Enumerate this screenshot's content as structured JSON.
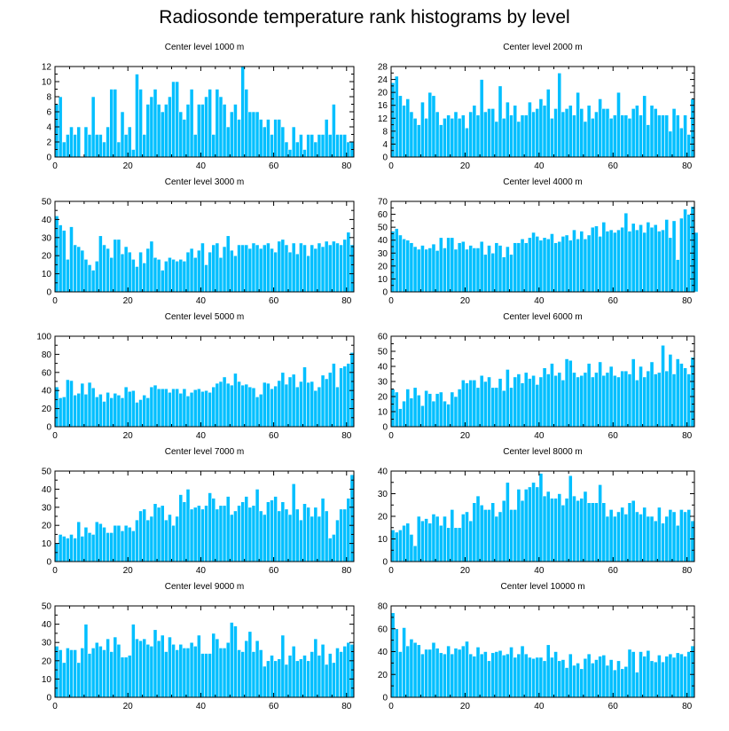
{
  "title": "Radiosonde temperature rank histograms by level",
  "colors": {
    "bar": "#00BFFF",
    "bar_edge": "#ffffff",
    "axis": "#000000",
    "background": "#ffffff"
  },
  "chart_data": [
    {
      "type": "bar",
      "title": "Center level 1000 m",
      "xlim": [
        0,
        82
      ],
      "ylim": [
        0,
        12
      ],
      "xticks": [
        0,
        20,
        40,
        60,
        80
      ],
      "yticks": [
        0,
        2,
        4,
        6,
        8,
        10,
        12
      ],
      "x_start": 0,
      "values": [
        7,
        8,
        2,
        3,
        4,
        3,
        4,
        0,
        4,
        3,
        8,
        3,
        3,
        2,
        4,
        9,
        9,
        2,
        6,
        3,
        4,
        1,
        11,
        9,
        3,
        7,
        8,
        9,
        7,
        6,
        7,
        8,
        10,
        10,
        6,
        5,
        7,
        9,
        3,
        7,
        7,
        8,
        9,
        3,
        9,
        8,
        7,
        4,
        6,
        7,
        5,
        12,
        9,
        6,
        6,
        6,
        5,
        4,
        5,
        3,
        5,
        5,
        4,
        2,
        1,
        4,
        2,
        3,
        1,
        3,
        3,
        2,
        3,
        3,
        5,
        3,
        7,
        3,
        3,
        3,
        2,
        2
      ]
    },
    {
      "type": "bar",
      "title": "Center level 2000 m",
      "xlim": [
        0,
        82
      ],
      "ylim": [
        0,
        28
      ],
      "xticks": [
        0,
        20,
        40,
        60,
        80
      ],
      "yticks": [
        0,
        4,
        8,
        12,
        16,
        20,
        24,
        28
      ],
      "x_start": 0,
      "values": [
        23,
        25,
        19,
        16,
        18,
        14,
        12,
        10,
        17,
        12,
        20,
        19,
        14,
        10,
        12,
        13,
        12,
        14,
        12,
        13,
        9,
        14,
        16,
        13,
        24,
        14,
        15,
        15,
        11,
        22,
        12,
        17,
        13,
        16,
        11,
        13,
        13,
        17,
        14,
        15,
        18,
        16,
        21,
        12,
        15,
        26,
        14,
        15,
        16,
        13,
        20,
        15,
        11,
        16,
        12,
        14,
        18,
        15,
        15,
        12,
        13,
        20,
        13,
        13,
        12,
        15,
        16,
        13,
        19,
        10,
        16,
        15,
        13,
        13,
        13,
        8,
        15,
        13,
        9,
        13,
        7,
        18
      ]
    },
    {
      "type": "bar",
      "title": "Center level 3000 m",
      "xlim": [
        0,
        82
      ],
      "ylim": [
        0,
        50
      ],
      "xticks": [
        0,
        20,
        40,
        60,
        80
      ],
      "yticks": [
        0,
        10,
        20,
        30,
        40,
        50
      ],
      "x_start": 0,
      "values": [
        42,
        37,
        34,
        18,
        36,
        26,
        25,
        23,
        18,
        15,
        12,
        17,
        31,
        26,
        24,
        19,
        29,
        29,
        21,
        25,
        22,
        18,
        14,
        22,
        16,
        24,
        28,
        19,
        18,
        12,
        17,
        19,
        18,
        17,
        18,
        17,
        22,
        24,
        19,
        23,
        27,
        15,
        22,
        26,
        27,
        19,
        25,
        31,
        23,
        20,
        26,
        26,
        26,
        24,
        27,
        26,
        24,
        26,
        27,
        24,
        22,
        28,
        29,
        26,
        22,
        27,
        21,
        27,
        26,
        20,
        26,
        24,
        27,
        25,
        28,
        26,
        28,
        27,
        26,
        29,
        33,
        26
      ]
    },
    {
      "type": "bar",
      "title": "Center level 4000 m",
      "xlim": [
        0,
        82
      ],
      "ylim": [
        0,
        70
      ],
      "xticks": [
        0,
        20,
        40,
        60,
        80
      ],
      "yticks": [
        0,
        10,
        20,
        30,
        40,
        50,
        60,
        70
      ],
      "x_start": 0,
      "values": [
        47,
        49,
        44,
        41,
        40,
        38,
        35,
        33,
        36,
        33,
        34,
        37,
        32,
        42,
        34,
        42,
        42,
        33,
        38,
        39,
        33,
        36,
        34,
        34,
        39,
        29,
        36,
        30,
        38,
        36,
        27,
        35,
        29,
        38,
        38,
        41,
        38,
        42,
        46,
        43,
        40,
        42,
        41,
        45,
        38,
        39,
        43,
        44,
        40,
        48,
        41,
        47,
        41,
        44,
        50,
        51,
        43,
        54,
        47,
        48,
        46,
        48,
        50,
        61,
        47,
        53,
        48,
        52,
        46,
        54,
        50,
        52,
        47,
        48,
        56,
        42,
        55,
        25,
        57,
        64,
        60,
        66,
        46
      ]
    },
    {
      "type": "bar",
      "title": "Center level 5000 m",
      "xlim": [
        0,
        82
      ],
      "ylim": [
        0,
        100
      ],
      "xticks": [
        0,
        20,
        40,
        60,
        80
      ],
      "yticks": [
        0,
        20,
        40,
        60,
        80,
        100
      ],
      "x_start": 0,
      "values": [
        44,
        32,
        33,
        52,
        51,
        35,
        37,
        48,
        36,
        49,
        43,
        33,
        36,
        28,
        38,
        32,
        37,
        35,
        32,
        44,
        39,
        40,
        27,
        30,
        35,
        32,
        44,
        46,
        42,
        42,
        42,
        38,
        42,
        42,
        37,
        42,
        34,
        38,
        41,
        42,
        39,
        40,
        38,
        44,
        48,
        50,
        55,
        48,
        46,
        59,
        50,
        46,
        47,
        44,
        43,
        33,
        36,
        49,
        48,
        42,
        45,
        51,
        60,
        47,
        55,
        58,
        44,
        50,
        66,
        49,
        50,
        40,
        44,
        57,
        53,
        60,
        70,
        44,
        65,
        67,
        70,
        82
      ]
    },
    {
      "type": "bar",
      "title": "Center level 6000 m",
      "xlim": [
        0,
        82
      ],
      "ylim": [
        0,
        60
      ],
      "xticks": [
        0,
        20,
        40,
        60,
        80
      ],
      "yticks": [
        0,
        10,
        20,
        30,
        40,
        50,
        60
      ],
      "x_start": 0,
      "values": [
        25,
        23,
        12,
        17,
        25,
        19,
        26,
        21,
        14,
        24,
        22,
        17,
        22,
        23,
        17,
        15,
        23,
        20,
        25,
        31,
        29,
        31,
        31,
        26,
        34,
        30,
        33,
        26,
        26,
        32,
        24,
        38,
        26,
        33,
        35,
        29,
        36,
        32,
        34,
        28,
        33,
        39,
        35,
        42,
        34,
        36,
        31,
        45,
        44,
        36,
        33,
        34,
        36,
        42,
        33,
        36,
        43,
        34,
        36,
        40,
        34,
        33,
        37,
        37,
        35,
        45,
        31,
        40,
        33,
        37,
        43,
        35,
        36,
        54,
        37,
        48,
        35,
        45,
        42,
        39,
        35,
        46
      ]
    },
    {
      "type": "bar",
      "title": "Center level 7000 m",
      "xlim": [
        0,
        82
      ],
      "ylim": [
        0,
        50
      ],
      "xticks": [
        0,
        20,
        40,
        60,
        80
      ],
      "yticks": [
        0,
        10,
        20,
        30,
        40,
        50
      ],
      "x_start": 0,
      "values": [
        10,
        15,
        14,
        13,
        15,
        13,
        22,
        14,
        19,
        16,
        15,
        22,
        21,
        19,
        16,
        16,
        20,
        20,
        17,
        20,
        19,
        17,
        23,
        28,
        29,
        23,
        25,
        32,
        30,
        31,
        23,
        26,
        20,
        25,
        37,
        33,
        40,
        29,
        30,
        31,
        29,
        31,
        38,
        35,
        29,
        31,
        31,
        36,
        26,
        28,
        31,
        33,
        36,
        30,
        31,
        40,
        28,
        26,
        33,
        34,
        36,
        28,
        33,
        29,
        26,
        43,
        29,
        23,
        32,
        30,
        25,
        30,
        25,
        35,
        28,
        13,
        15,
        23,
        29,
        29,
        35,
        48
      ]
    },
    {
      "type": "bar",
      "title": "Center level 8000 m",
      "xlim": [
        0,
        82
      ],
      "ylim": [
        0,
        40
      ],
      "xticks": [
        0,
        20,
        40,
        60,
        80
      ],
      "yticks": [
        0,
        10,
        20,
        30,
        40
      ],
      "x_start": 0,
      "values": [
        14,
        13,
        14,
        16,
        17,
        12,
        7,
        20,
        18,
        19,
        17,
        21,
        20,
        16,
        20,
        15,
        23,
        15,
        15,
        21,
        22,
        18,
        26,
        29,
        25,
        23,
        23,
        26,
        20,
        22,
        27,
        35,
        23,
        23,
        32,
        27,
        32,
        33,
        35,
        33,
        39,
        29,
        31,
        28,
        28,
        30,
        25,
        28,
        38,
        29,
        27,
        28,
        31,
        26,
        26,
        26,
        34,
        26,
        20,
        23,
        20,
        22,
        24,
        21,
        26,
        27,
        22,
        21,
        24,
        20,
        20,
        18,
        24,
        17,
        20,
        23,
        22,
        16,
        23,
        22,
        23,
        18
      ]
    },
    {
      "type": "bar",
      "title": "Center level 9000 m",
      "xlim": [
        0,
        82
      ],
      "ylim": [
        0,
        50
      ],
      "xticks": [
        0,
        20,
        40,
        60,
        80
      ],
      "yticks": [
        0,
        10,
        20,
        30,
        40,
        50
      ],
      "x_start": 0,
      "values": [
        28,
        26,
        19,
        27,
        26,
        26,
        19,
        27,
        40,
        24,
        27,
        30,
        28,
        26,
        32,
        25,
        33,
        29,
        22,
        22,
        23,
        40,
        32,
        31,
        32,
        29,
        28,
        37,
        31,
        34,
        25,
        33,
        29,
        26,
        29,
        27,
        27,
        30,
        28,
        34,
        24,
        24,
        24,
        35,
        32,
        27,
        27,
        30,
        41,
        39,
        26,
        25,
        31,
        36,
        25,
        31,
        26,
        17,
        20,
        23,
        20,
        21,
        34,
        18,
        23,
        28,
        20,
        21,
        23,
        20,
        25,
        32,
        23,
        29,
        18,
        24,
        19,
        27,
        25,
        28,
        30,
        29
      ]
    },
    {
      "type": "bar",
      "title": "Center level 10000 m",
      "xlim": [
        0,
        82
      ],
      "ylim": [
        0,
        80
      ],
      "xticks": [
        0,
        20,
        40,
        60,
        80
      ],
      "yticks": [
        0,
        20,
        40,
        60,
        80
      ],
      "x_start": 0,
      "values": [
        74,
        60,
        40,
        61,
        45,
        51,
        48,
        46,
        38,
        42,
        42,
        48,
        43,
        39,
        38,
        45,
        38,
        43,
        42,
        45,
        49,
        38,
        36,
        44,
        38,
        40,
        32,
        39,
        40,
        41,
        37,
        38,
        44,
        35,
        38,
        45,
        38,
        35,
        34,
        35,
        35,
        32,
        46,
        35,
        40,
        32,
        33,
        26,
        38,
        28,
        30,
        25,
        34,
        38,
        30,
        33,
        36,
        37,
        28,
        33,
        24,
        32,
        25,
        27,
        42,
        40,
        22,
        40,
        36,
        41,
        32,
        31,
        37,
        31,
        36,
        38,
        35,
        39,
        38,
        36,
        40,
        45
      ]
    }
  ]
}
